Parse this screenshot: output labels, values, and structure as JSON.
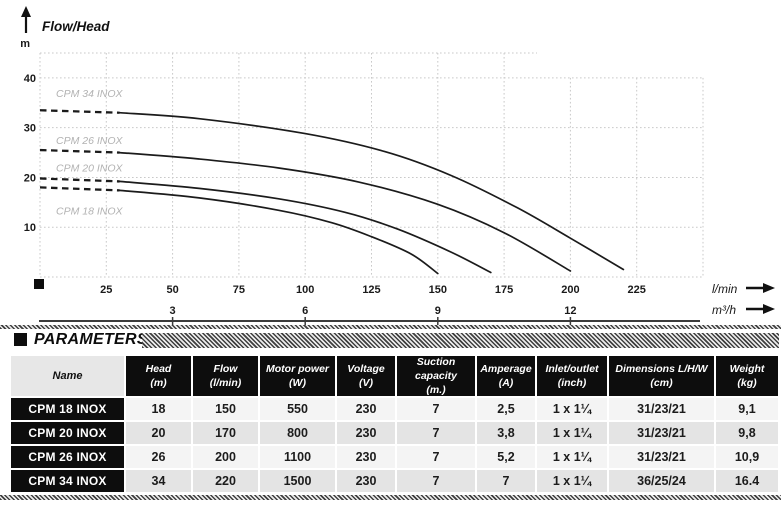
{
  "chart": {
    "title": "Flow/Head",
    "y_axis_unit": "m",
    "x_axis_unit_primary": "l/min",
    "x_axis_unit_secondary": "m³/h",
    "colors": {
      "curve": "#1b1b1b",
      "grid": "#c9c9c9",
      "curve_label": "#b2b2b2",
      "axis_text": "#1a1a1a",
      "secondary_axis_line": "#3b3b3b"
    }
  },
  "chart_data": {
    "type": "line",
    "title": "Flow/Head",
    "ylabel": "m",
    "xlabel_primary": "l/min",
    "xlabel_secondary": "m³/h",
    "xlim_lmin": [
      0,
      250
    ],
    "ylim_m": [
      0,
      45
    ],
    "x_ticks_lmin": [
      25,
      50,
      75,
      100,
      125,
      150,
      175,
      200,
      225
    ],
    "x_ticks_m3h": [
      3,
      6,
      9,
      12
    ],
    "y_ticks_m": [
      40,
      30,
      20,
      10
    ],
    "grid": true,
    "legend_position": "labels-on-curves",
    "series": [
      {
        "name": "CPM 18 INOX",
        "dashed_until_lmin": 30,
        "shutoff_head_m": 18,
        "max_flow_lmin": 150,
        "points_lmin_m": [
          [
            0,
            18
          ],
          [
            30,
            17.4
          ],
          [
            60,
            15.9
          ],
          [
            90,
            13.4
          ],
          [
            110,
            10.9
          ],
          [
            125,
            8.1
          ],
          [
            140,
            4.6
          ],
          [
            150,
            0.7
          ]
        ]
      },
      {
        "name": "CPM 20 INOX",
        "dashed_until_lmin": 30,
        "shutoff_head_m": 19.8,
        "max_flow_lmin": 170,
        "points_lmin_m": [
          [
            0,
            19.8
          ],
          [
            30,
            19.2
          ],
          [
            60,
            17.8
          ],
          [
            90,
            15.7
          ],
          [
            115,
            13
          ],
          [
            135,
            9.6
          ],
          [
            155,
            5
          ],
          [
            170,
            0.9
          ]
        ]
      },
      {
        "name": "CPM 26 INOX",
        "dashed_until_lmin": 30,
        "shutoff_head_m": 25.5,
        "max_flow_lmin": 200,
        "points_lmin_m": [
          [
            0,
            25.5
          ],
          [
            30,
            25
          ],
          [
            60,
            23.7
          ],
          [
            90,
            21.9
          ],
          [
            120,
            19.1
          ],
          [
            150,
            14.6
          ],
          [
            175,
            8.9
          ],
          [
            200,
            1.2
          ]
        ]
      },
      {
        "name": "CPM 34 INOX",
        "dashed_until_lmin": 30,
        "shutoff_head_m": 33.5,
        "max_flow_lmin": 220,
        "points_lmin_m": [
          [
            0,
            33.5
          ],
          [
            30,
            33
          ],
          [
            60,
            31.8
          ],
          [
            100,
            28.8
          ],
          [
            130,
            25.2
          ],
          [
            155,
            20.4
          ],
          [
            180,
            13.9
          ],
          [
            200,
            7.8
          ],
          [
            220,
            1.5
          ]
        ]
      }
    ]
  },
  "table": {
    "section_title": "PARAMETERS",
    "columns": [
      {
        "label": "Name",
        "unit": ""
      },
      {
        "label": "Head",
        "unit": "(m)"
      },
      {
        "label": "Flow",
        "unit": "(l/min)"
      },
      {
        "label": "Motor power",
        "unit": "(W)"
      },
      {
        "label": "Voltage",
        "unit": "(V)"
      },
      {
        "label": "Suction capacity",
        "unit": "(m.)"
      },
      {
        "label": "Amperage",
        "unit": "(A)"
      },
      {
        "label": "Inlet/outlet",
        "unit": "(inch)"
      },
      {
        "label": "Dimensions L/H/W",
        "unit": "(cm)"
      },
      {
        "label": "Weight",
        "unit": "(kg)"
      }
    ],
    "rows": [
      {
        "name": "CPM 18 INOX",
        "values": [
          "18",
          "150",
          "550",
          "230",
          "7",
          "2,5",
          "1 x 1¼",
          "31/23/21",
          "9,1"
        ]
      },
      {
        "name": "CPM 20 INOX",
        "values": [
          "20",
          "170",
          "800",
          "230",
          "7",
          "3,8",
          "1 x 1¼",
          "31/23/21",
          "9,8"
        ]
      },
      {
        "name": "CPM 26 INOX",
        "values": [
          "26",
          "200",
          "1100",
          "230",
          "7",
          "5,2",
          "1 x 1¼",
          "31/23/21",
          "10,9"
        ]
      },
      {
        "name": "CPM 34 INOX",
        "values": [
          "34",
          "220",
          "1500",
          "230",
          "7",
          "7",
          "1 x 1¼",
          "36/25/24",
          "16.4"
        ]
      }
    ]
  }
}
